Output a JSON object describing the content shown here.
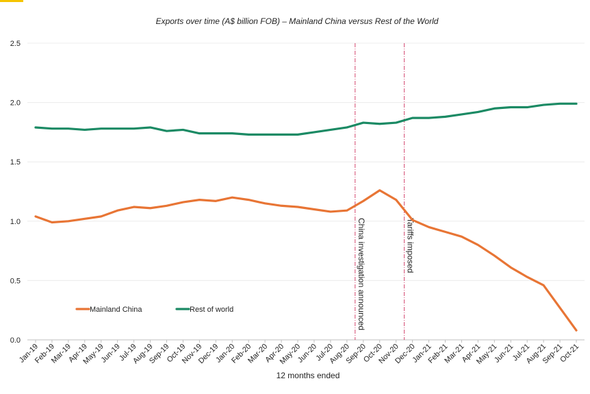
{
  "chart_data": {
    "type": "line",
    "title": "Exports over time (A$ billion FOB) – Mainland China versus Rest of the World",
    "xlabel": "12 months ended",
    "ylabel": "",
    "ylim": [
      0,
      2.5
    ],
    "yticks": [
      "0.0",
      "0.5",
      "1.0",
      "1.5",
      "2.0",
      "2.5"
    ],
    "grid": true,
    "legend_position": "bottom-left",
    "categories": [
      "Jan-19",
      "Feb-19",
      "Mar-19",
      "Apr-19",
      "May-19",
      "Jun-19",
      "Jul-19",
      "Aug-19",
      "Sep-19",
      "Oct-19",
      "Nov-19",
      "Dec-19",
      "Jan-20",
      "Feb-20",
      "Mar-20",
      "Apr-20",
      "May-20",
      "Jun-20",
      "Jul-20",
      "Aug-20",
      "Sep-20",
      "Oct-20",
      "Nov-20",
      "Dec-20",
      "Jan-21",
      "Feb-21",
      "Mar-21",
      "Apr-21",
      "May-21",
      "Jun-21",
      "Jul-21",
      "Aug-21",
      "Sep-21",
      "Oct-21"
    ],
    "series": [
      {
        "name": "Mainland China",
        "color": "#e87535",
        "values": [
          1.04,
          0.99,
          1.0,
          1.02,
          1.04,
          1.09,
          1.12,
          1.11,
          1.13,
          1.16,
          1.18,
          1.17,
          1.2,
          1.18,
          1.15,
          1.13,
          1.12,
          1.1,
          1.08,
          1.09,
          1.17,
          1.26,
          1.18,
          1.01,
          0.95,
          0.91,
          0.87,
          0.8,
          0.71,
          0.61,
          0.53,
          0.46,
          0.27,
          0.08
        ]
      },
      {
        "name": "Rest of world",
        "color": "#1b8a64",
        "values": [
          1.79,
          1.78,
          1.78,
          1.77,
          1.78,
          1.78,
          1.78,
          1.79,
          1.76,
          1.77,
          1.74,
          1.74,
          1.74,
          1.73,
          1.73,
          1.73,
          1.73,
          1.75,
          1.77,
          1.79,
          1.83,
          1.82,
          1.83,
          1.87,
          1.87,
          1.88,
          1.9,
          1.92,
          1.95,
          1.96,
          1.96,
          1.98,
          1.99,
          1.99
        ]
      }
    ],
    "annotations": [
      {
        "text": "China investigation announced",
        "after_category": "Aug-20",
        "color": "#d4466e"
      },
      {
        "text": "Tariffs imposed",
        "after_category": "Nov-20",
        "color": "#d4466e"
      }
    ]
  }
}
